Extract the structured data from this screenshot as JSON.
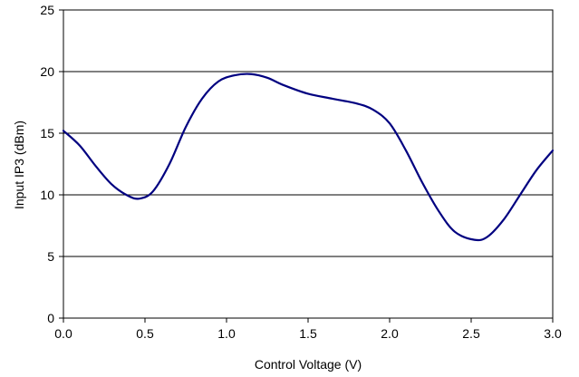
{
  "chart_data": {
    "type": "line",
    "title": "",
    "xlabel": "Control Voltage (V)",
    "ylabel": "Input IP3 (dBm)",
    "xlim": [
      0,
      3
    ],
    "ylim": [
      0,
      25
    ],
    "x_ticks": [
      0,
      0.5,
      1,
      1.5,
      2,
      2.5,
      3
    ],
    "x_tick_labels": [
      "0.0",
      "0.5",
      "1.0",
      "1.5",
      "2.0",
      "2.5",
      "3.0"
    ],
    "y_ticks": [
      0,
      5,
      10,
      15,
      20,
      25
    ],
    "y_tick_labels": [
      "0",
      "5",
      "10",
      "15",
      "20",
      "25"
    ],
    "grid": "horizontal",
    "legend": "none",
    "series": [
      {
        "color": "#000080",
        "x": [
          0,
          0.1,
          0.2,
          0.3,
          0.4,
          0.47,
          0.55,
          0.65,
          0.75,
          0.85,
          0.95,
          1.05,
          1.15,
          1.25,
          1.35,
          1.5,
          1.65,
          1.8,
          1.9,
          2.0,
          2.1,
          2.2,
          2.3,
          2.4,
          2.52,
          2.6,
          2.7,
          2.8,
          2.9,
          3.0
        ],
        "y": [
          15.2,
          14.0,
          12.3,
          10.8,
          9.9,
          9.7,
          10.3,
          12.5,
          15.5,
          17.8,
          19.2,
          19.7,
          19.8,
          19.5,
          18.9,
          18.2,
          17.8,
          17.4,
          16.9,
          15.8,
          13.6,
          11.0,
          8.7,
          7.0,
          6.35,
          6.6,
          8.0,
          10.0,
          12.0,
          13.6
        ]
      }
    ]
  }
}
